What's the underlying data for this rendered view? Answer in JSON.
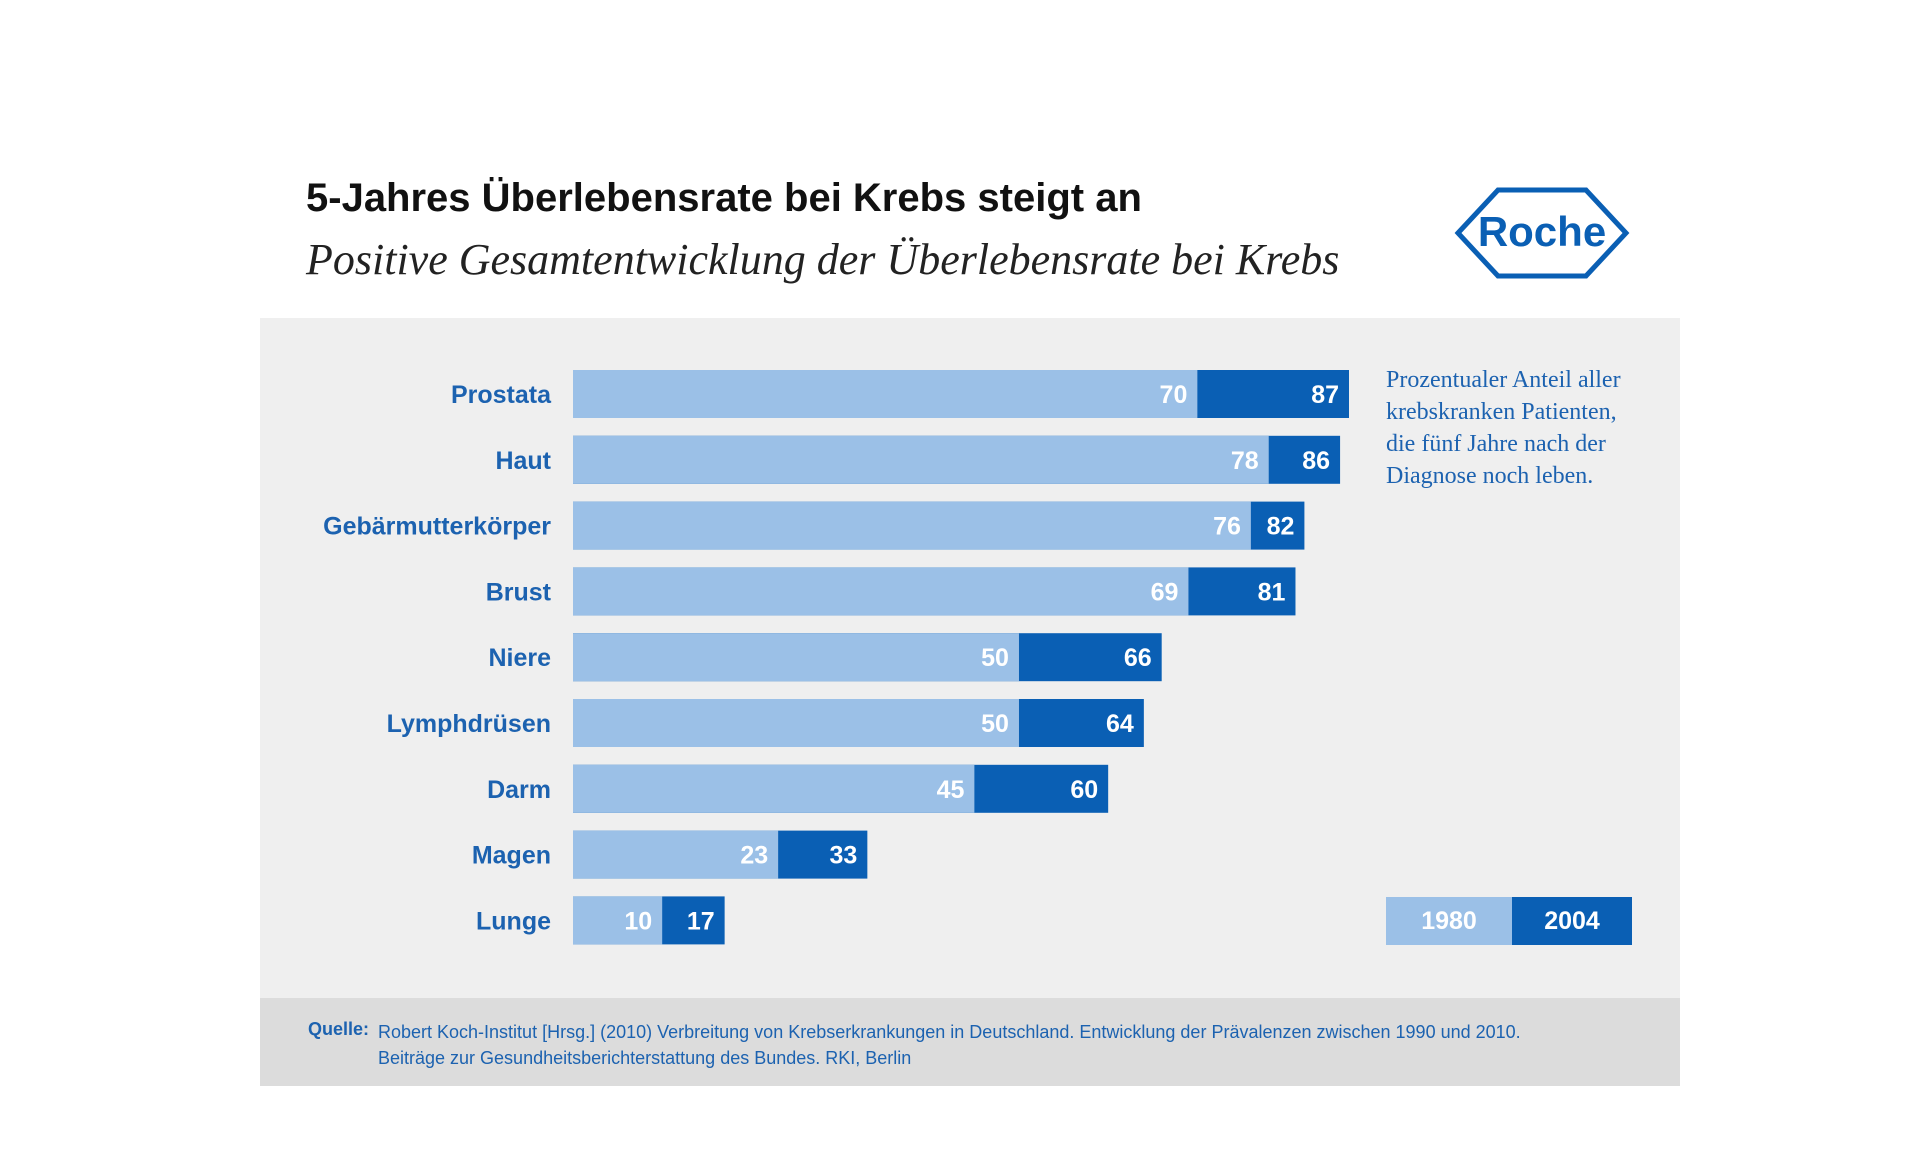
{
  "title": "5-Jahres Überlebensrate bei Krebs steigt an",
  "subtitle": "Positive Gesamtentwicklung der Überlebensrate bei Krebs",
  "logo_text": "Roche",
  "note": "Prozentualer Anteil aller krebskranken Patienten, die fünf Jahre nach der Diagnose noch leben.",
  "colors": {
    "series_1980": "#9bc0e7",
    "series_2004": "#0a5fb4",
    "label": "#1c62b0",
    "panel": "#efefef"
  },
  "chart_data": {
    "type": "bar",
    "orientation": "horizontal",
    "categories": [
      "Prostata",
      "Haut",
      "Gebärmutterkörper",
      "Brust",
      "Niere",
      "Lymphdrüsen",
      "Darm",
      "Magen",
      "Lunge"
    ],
    "series": [
      {
        "name": "1980",
        "values": [
          70,
          78,
          76,
          69,
          50,
          50,
          45,
          23,
          10
        ]
      },
      {
        "name": "2004",
        "values": [
          87,
          86,
          82,
          81,
          66,
          64,
          60,
          33,
          17
        ]
      }
    ],
    "xlim": [
      0,
      87
    ],
    "grid": false,
    "legend_position": "bottom-right",
    "title": "5-Jahres Überlebensrate bei Krebs steigt an",
    "subtitle": "Positive Gesamtentwicklung der Überlebensrate bei Krebs"
  },
  "source": {
    "label": "Quelle:",
    "lines": [
      "Robert Koch-Institut [Hrsg.] (2010) Verbreitung von Krebserkrankungen in Deutschland. Entwicklung der Prävalenzen zwischen 1990 und 2010.",
      "Beiträge zur Gesundheitsberichterstattung des Bundes. RKI, Berlin"
    ]
  }
}
